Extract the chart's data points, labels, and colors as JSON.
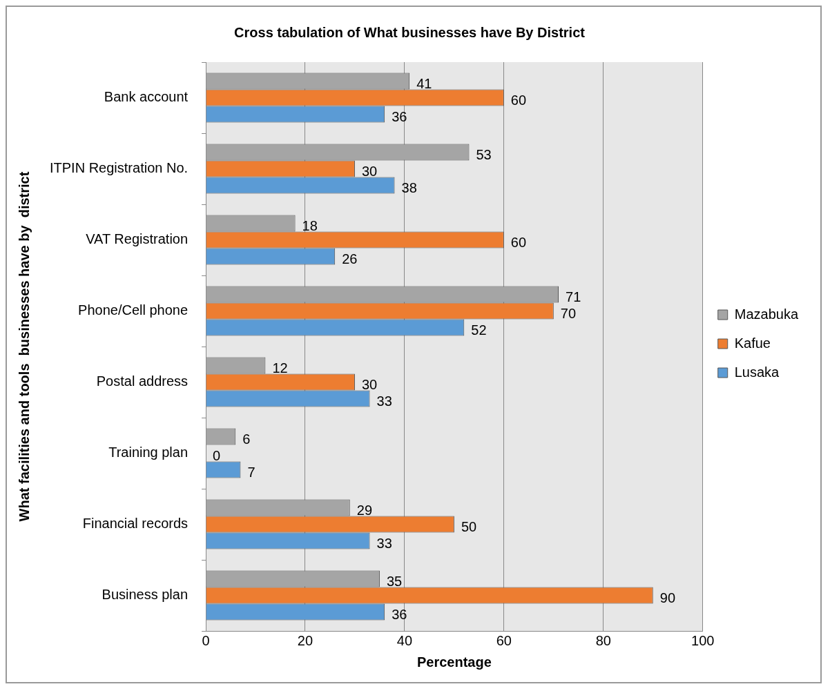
{
  "chart_data": {
    "type": "bar",
    "orientation": "horizontal",
    "title": "Cross tabulation of What businesses have By District",
    "xlabel": "Percentage",
    "ylabel": "What facilities and tools  businesses have by  district",
    "categories": [
      "Bank account",
      "ITPIN Registration No.",
      "VAT Registration",
      "Phone/Cell phone",
      "Postal address",
      "Training plan",
      "Financial records",
      "Business plan"
    ],
    "series": [
      {
        "name": "Mazabuka",
        "color": "#a5a5a5",
        "values": [
          41,
          53,
          18,
          71,
          12,
          6,
          29,
          35
        ]
      },
      {
        "name": "Kafue",
        "color": "#ed7d31",
        "values": [
          60,
          30,
          60,
          70,
          30,
          0,
          50,
          90
        ]
      },
      {
        "name": "Lusaka",
        "color": "#5b9bd5",
        "values": [
          36,
          38,
          26,
          52,
          33,
          7,
          33,
          36
        ]
      }
    ],
    "xlim": [
      0,
      100
    ],
    "xticks": [
      0,
      20,
      40,
      60,
      80,
      100
    ],
    "grid": "x",
    "legend": "right",
    "data_labels": true
  }
}
